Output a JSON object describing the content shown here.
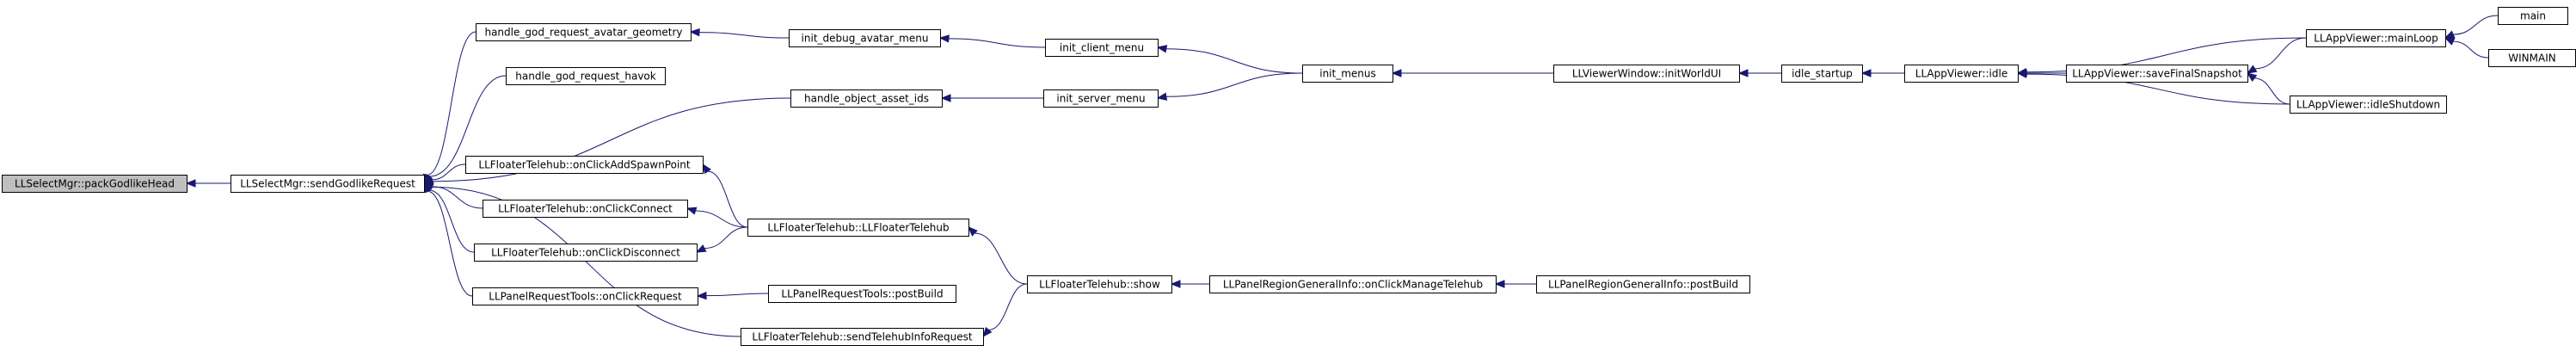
{
  "graph": {
    "title": "",
    "colors": {
      "edge": "#191970",
      "node_border": "#000000",
      "highlight_fill": "#bfbfbf",
      "node_fill": "#ffffff"
    },
    "nodes": {
      "packGodlikeHead": "LLSelectMgr::packGodlikeHead",
      "sendGodlikeRequest": "LLSelectMgr::sendGodlikeRequest",
      "handle_god_request_avatar_geometry": "handle_god_request_avatar_geometry",
      "handle_god_request_havok": "handle_god_request_havok",
      "handle_object_asset_ids": "handle_object_asset_ids",
      "onClickAddSpawnPoint": "LLFloaterTelehub::onClickAddSpawnPoint",
      "onClickConnect": "LLFloaterTelehub::onClickConnect",
      "onClickDisconnect": "LLFloaterTelehub::onClickDisconnect",
      "onClickRequest": "LLPanelRequestTools::onClickRequest",
      "sendTelehubInfoRequest": "LLFloaterTelehub::sendTelehubInfoRequest",
      "init_debug_avatar_menu": "init_debug_avatar_menu",
      "init_server_menu": "init_server_menu",
      "LLFloaterTelehub_ctor": "LLFloaterTelehub::LLFloaterTelehub",
      "rt_postBuild": "LLPanelRequestTools::postBuild",
      "init_client_menu": "init_client_menu",
      "telehub_show": "LLFloaterTelehub::show",
      "init_menus": "init_menus",
      "onClickManageTelehub": "LLPanelRegionGeneralInfo::onClickManageTelehub",
      "initWorldUI": "LLViewerWindow::initWorldUI",
      "rg_postBuild": "LLPanelRegionGeneralInfo::postBuild",
      "idle_startup": "idle_startup",
      "idle": "LLAppViewer::idle",
      "saveFinalSnapshot": "LLAppViewer::saveFinalSnapshot",
      "mainLoop": "LLAppViewer::mainLoop",
      "idleShutdown": "LLAppViewer::idleShutdown",
      "main": "main",
      "WINMAIN": "WINMAIN"
    }
  }
}
